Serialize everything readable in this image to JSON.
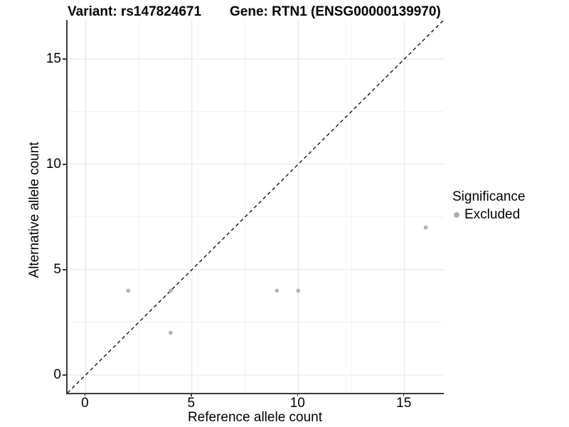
{
  "header": {
    "variant_title": "Variant: rs147824671",
    "gene_title": "Gene: RTN1 (ENSG00000139970)"
  },
  "legend": {
    "title": "Significance",
    "items": [
      {
        "label": "Excluded",
        "color": "#b5b5b5"
      }
    ]
  },
  "colors": {
    "point": "#b5b5b5",
    "grid_major": "#e4e4e4",
    "grid_minor": "#f0f0f0",
    "axis_line": "#3a3a3a",
    "identity_line": "#111111",
    "text": "#000000"
  },
  "chart_data": {
    "type": "scatter",
    "title": "Variant: rs147824671 / Gene: RTN1 (ENSG00000139970)",
    "xlabel": "Reference allele count",
    "ylabel": "Alternative allele count",
    "xlim": [
      -0.85,
      16.85
    ],
    "ylim": [
      -0.85,
      16.85
    ],
    "x_ticks": [
      0,
      5,
      10,
      15
    ],
    "y_ticks": [
      0,
      5,
      10,
      15
    ],
    "minor_gridlines": [
      2.5,
      7.5,
      12.5
    ],
    "grid": true,
    "legend_position": "right",
    "identity_line": {
      "style": "dashed",
      "slope": 1,
      "intercept": 0
    },
    "series": [
      {
        "name": "Excluded",
        "color": "#b5b5b5",
        "points": [
          {
            "x": 2,
            "y": 4
          },
          {
            "x": 4,
            "y": 2
          },
          {
            "x": 4,
            "y": 4
          },
          {
            "x": 9,
            "y": 4
          },
          {
            "x": 10,
            "y": 4
          },
          {
            "x": 16,
            "y": 7
          }
        ]
      }
    ]
  }
}
